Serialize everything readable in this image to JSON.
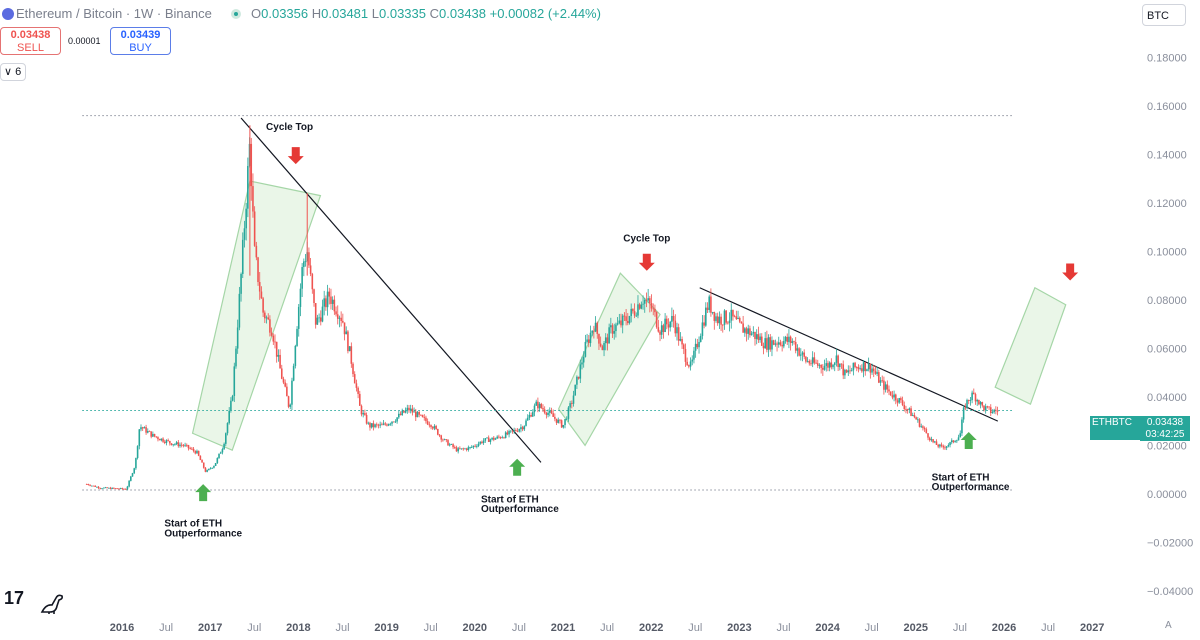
{
  "header": {
    "title": "Ethereum / Bitcoin · 1W · Binance",
    "open_label": "O",
    "open": "0.03356",
    "high_label": "H",
    "high": "0.03481",
    "low_label": "L",
    "low": "0.03335",
    "close_label": "C",
    "close": "0.03438",
    "change": "+0.00082 (+2.44%)",
    "currency": "BTC"
  },
  "trade": {
    "sell_price": "0.03438",
    "sell_label": "SELL",
    "buy_price": "0.03439",
    "buy_label": "BUY",
    "spread": "0.00001"
  },
  "indicators_count": "6",
  "price_badge": {
    "symbol": "ETHBTC",
    "price": "0.03438",
    "timer": "03:42:25"
  },
  "auto_label": "A",
  "colors": {
    "up": "#26a69a",
    "down": "#ef5350",
    "channel_fill": "#e3f3e0",
    "channel_stroke": "#a5d6a7",
    "arrow_up": "#4caf50",
    "arrow_down": "#e53935"
  },
  "chart_data": {
    "type": "candlestick",
    "symbol": "ETHBTC",
    "interval": "1W",
    "y_axis_side": "right",
    "ylim": [
      -0.045,
      0.19
    ],
    "yticks": [
      "0.18000",
      "0.16000",
      "0.14000",
      "0.12000",
      "0.10000",
      "0.08000",
      "0.06000",
      "0.04000",
      "0.02000",
      "0.00000",
      "−0.02000",
      "−0.04000"
    ],
    "xlim": [
      2015.55,
      2027.4
    ],
    "xticks": [
      {
        "t": 2016.0,
        "label": "2016",
        "year": true
      },
      {
        "t": 2016.5,
        "label": "Jul",
        "year": false
      },
      {
        "t": 2017.0,
        "label": "2017",
        "year": true
      },
      {
        "t": 2017.5,
        "label": "Jul",
        "year": false
      },
      {
        "t": 2018.0,
        "label": "2018",
        "year": true
      },
      {
        "t": 2018.5,
        "label": "Jul",
        "year": false
      },
      {
        "t": 2019.0,
        "label": "2019",
        "year": true
      },
      {
        "t": 2019.5,
        "label": "Jul",
        "year": false
      },
      {
        "t": 2020.0,
        "label": "2020",
        "year": true
      },
      {
        "t": 2020.5,
        "label": "Jul",
        "year": false
      },
      {
        "t": 2021.0,
        "label": "2021",
        "year": true
      },
      {
        "t": 2021.5,
        "label": "Jul",
        "year": false
      },
      {
        "t": 2022.0,
        "label": "2022",
        "year": true
      },
      {
        "t": 2022.5,
        "label": "Jul",
        "year": false
      },
      {
        "t": 2023.0,
        "label": "2023",
        "year": true
      },
      {
        "t": 2023.5,
        "label": "Jul",
        "year": false
      },
      {
        "t": 2024.0,
        "label": "2024",
        "year": true
      },
      {
        "t": 2024.5,
        "label": "Jul",
        "year": false
      },
      {
        "t": 2025.0,
        "label": "2025",
        "year": true
      },
      {
        "t": 2025.5,
        "label": "Jul",
        "year": false
      },
      {
        "t": 2026.0,
        "label": "2026",
        "year": true
      },
      {
        "t": 2026.5,
        "label": "Jul",
        "year": false
      },
      {
        "t": 2027.0,
        "label": "2027",
        "year": true
      }
    ],
    "price_path": [
      [
        2015.6,
        0.004
      ],
      [
        2015.75,
        0.0025
      ],
      [
        2016.05,
        0.002
      ],
      [
        2016.15,
        0.012
      ],
      [
        2016.2,
        0.028
      ],
      [
        2016.35,
        0.024
      ],
      [
        2016.55,
        0.021
      ],
      [
        2016.7,
        0.02
      ],
      [
        2016.85,
        0.017
      ],
      [
        2016.95,
        0.009
      ],
      [
        2017.05,
        0.012
      ],
      [
        2017.15,
        0.02
      ],
      [
        2017.25,
        0.04
      ],
      [
        2017.35,
        0.09
      ],
      [
        2017.45,
        0.145
      ],
      [
        2017.5,
        0.1
      ],
      [
        2017.6,
        0.075
      ],
      [
        2017.7,
        0.068
      ],
      [
        2017.8,
        0.05
      ],
      [
        2017.9,
        0.035
      ],
      [
        2017.97,
        0.065
      ],
      [
        2018.05,
        0.095
      ],
      [
        2018.1,
        0.1
      ],
      [
        2018.2,
        0.07
      ],
      [
        2018.35,
        0.082
      ],
      [
        2018.5,
        0.072
      ],
      [
        2018.6,
        0.055
      ],
      [
        2018.7,
        0.035
      ],
      [
        2018.8,
        0.028
      ],
      [
        2018.95,
        0.028
      ],
      [
        2019.1,
        0.031
      ],
      [
        2019.25,
        0.035
      ],
      [
        2019.4,
        0.031
      ],
      [
        2019.5,
        0.029
      ],
      [
        2019.65,
        0.022
      ],
      [
        2019.8,
        0.018
      ],
      [
        2019.95,
        0.019
      ],
      [
        2020.1,
        0.022
      ],
      [
        2020.25,
        0.023
      ],
      [
        2020.4,
        0.025
      ],
      [
        2020.55,
        0.028
      ],
      [
        2020.7,
        0.037
      ],
      [
        2020.85,
        0.033
      ],
      [
        2021.0,
        0.028
      ],
      [
        2021.1,
        0.038
      ],
      [
        2021.25,
        0.06
      ],
      [
        2021.35,
        0.07
      ],
      [
        2021.45,
        0.06
      ],
      [
        2021.55,
        0.068
      ],
      [
        2021.65,
        0.07
      ],
      [
        2021.8,
        0.075
      ],
      [
        2021.9,
        0.081
      ],
      [
        2022.0,
        0.077
      ],
      [
        2022.1,
        0.068
      ],
      [
        2022.25,
        0.072
      ],
      [
        2022.35,
        0.06
      ],
      [
        2022.45,
        0.052
      ],
      [
        2022.55,
        0.066
      ],
      [
        2022.65,
        0.079
      ],
      [
        2022.75,
        0.072
      ],
      [
        2022.9,
        0.073
      ],
      [
        2023.0,
        0.069
      ],
      [
        2023.15,
        0.066
      ],
      [
        2023.3,
        0.062
      ],
      [
        2023.45,
        0.063
      ],
      [
        2023.6,
        0.063
      ],
      [
        2023.75,
        0.055
      ],
      [
        2023.9,
        0.053
      ],
      [
        2024.0,
        0.053
      ],
      [
        2024.1,
        0.056
      ],
      [
        2024.2,
        0.049
      ],
      [
        2024.3,
        0.052
      ],
      [
        2024.4,
        0.053
      ],
      [
        2024.5,
        0.052
      ],
      [
        2024.6,
        0.046
      ],
      [
        2024.7,
        0.042
      ],
      [
        2024.8,
        0.039
      ],
      [
        2024.9,
        0.035
      ],
      [
        2025.0,
        0.031
      ],
      [
        2025.1,
        0.026
      ],
      [
        2025.2,
        0.021
      ],
      [
        2025.3,
        0.019
      ],
      [
        2025.4,
        0.021
      ],
      [
        2025.5,
        0.024
      ],
      [
        2025.55,
        0.036
      ],
      [
        2025.6,
        0.039
      ],
      [
        2025.65,
        0.041
      ],
      [
        2025.7,
        0.039
      ],
      [
        2025.75,
        0.036
      ],
      [
        2025.85,
        0.034
      ],
      [
        2025.93,
        0.0344
      ]
    ],
    "lines": [
      {
        "name": "downtrend-2018",
        "from": [
          2017.35,
          0.155
        ],
        "to": [
          2020.75,
          0.013
        ],
        "color": "#131722"
      },
      {
        "name": "downtrend-2022",
        "from": [
          2022.55,
          0.085
        ],
        "to": [
          2025.93,
          0.03
        ],
        "color": "#131722"
      },
      {
        "name": "level-top",
        "from": [
          2015.55,
          0.156
        ],
        "to": [
          2026.1,
          0.156
        ],
        "color": "#8a8f9c",
        "style": "dotted"
      },
      {
        "name": "level-bottom",
        "from": [
          2015.55,
          0.0016
        ],
        "to": [
          2026.1,
          0.0016
        ],
        "color": "#8a8f9c",
        "style": "dotted"
      },
      {
        "name": "current-price",
        "from": [
          2015.55,
          0.03438
        ],
        "to": [
          2026.1,
          0.03438
        ],
        "color": "#26a69a",
        "style": "dotted"
      }
    ],
    "channels": [
      {
        "name": "channel-2017",
        "points": [
          [
            2016.8,
            0.025
          ],
          [
            2017.25,
            0.018
          ],
          [
            2018.25,
            0.123
          ],
          [
            2017.45,
            0.129
          ]
        ]
      },
      {
        "name": "channel-2021",
        "points": [
          [
            2020.95,
            0.035
          ],
          [
            2021.25,
            0.02
          ],
          [
            2022.1,
            0.074
          ],
          [
            2021.65,
            0.091
          ]
        ]
      },
      {
        "name": "channel-projection",
        "points": [
          [
            2025.9,
            0.044
          ],
          [
            2026.3,
            0.037
          ],
          [
            2026.7,
            0.078
          ],
          [
            2026.35,
            0.085
          ]
        ]
      }
    ],
    "annotations": [
      {
        "name": "cycle-top-2018-label",
        "text": "Cycle Top",
        "t": 2017.9,
        "v": 0.15,
        "anchor": "middle"
      },
      {
        "name": "cycle-top-2021-label",
        "text": "Cycle Top",
        "t": 2021.95,
        "v": 0.104,
        "anchor": "middle"
      },
      {
        "name": "outperf-2017-label-1",
        "text": "Start of ETH",
        "t": 2016.48,
        "v": -0.0135,
        "anchor": "start"
      },
      {
        "name": "outperf-2017-label-2",
        "text": "Outperformance",
        "t": 2016.48,
        "v": -0.0175,
        "anchor": "start"
      },
      {
        "name": "outperf-2020-label-1",
        "text": "Start of ETH",
        "t": 2020.07,
        "v": -0.0035,
        "anchor": "start"
      },
      {
        "name": "outperf-2020-label-2",
        "text": "Outperformance",
        "t": 2020.07,
        "v": -0.0075,
        "anchor": "start"
      },
      {
        "name": "outperf-2025-label-1",
        "text": "Start of ETH",
        "t": 2025.18,
        "v": 0.0055,
        "anchor": "start"
      },
      {
        "name": "outperf-2025-label-2",
        "text": "Outperformance",
        "t": 2025.18,
        "v": 0.0015,
        "anchor": "start"
      }
    ],
    "arrows": [
      {
        "name": "sell-arrow-2018",
        "dir": "down",
        "t": 2017.97,
        "v": 0.143
      },
      {
        "name": "sell-arrow-2021",
        "dir": "down",
        "t": 2021.95,
        "v": 0.099
      },
      {
        "name": "sell-arrow-2026",
        "dir": "down",
        "t": 2026.75,
        "v": 0.095
      },
      {
        "name": "buy-arrow-2017",
        "dir": "up",
        "t": 2016.92,
        "v": -0.003
      },
      {
        "name": "buy-arrow-2020",
        "dir": "up",
        "t": 2020.48,
        "v": 0.0075
      },
      {
        "name": "buy-arrow-2025",
        "dir": "up",
        "t": 2025.6,
        "v": 0.0185
      }
    ]
  }
}
